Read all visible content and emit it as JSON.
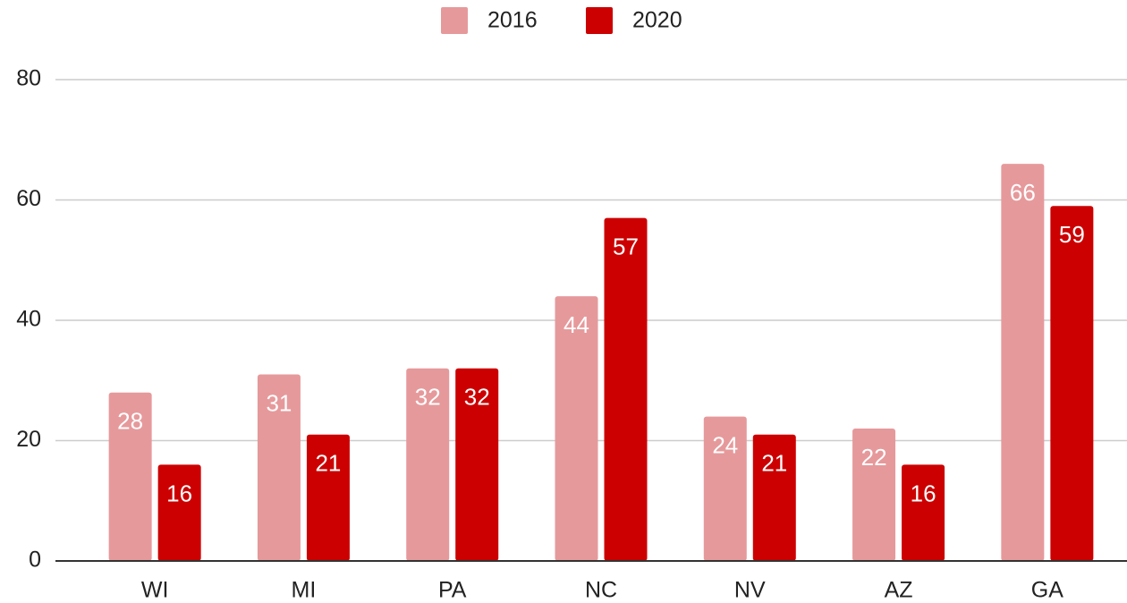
{
  "chart_data": {
    "type": "bar",
    "categories": [
      "WI",
      "MI",
      "PA",
      "NC",
      "NV",
      "AZ",
      "GA"
    ],
    "series": [
      {
        "name": "2016",
        "color": "#e6999b",
        "values": [
          28,
          31,
          32,
          44,
          24,
          22,
          66
        ]
      },
      {
        "name": "2020",
        "color": "#cc0000",
        "values": [
          16,
          21,
          32,
          57,
          21,
          16,
          59
        ]
      }
    ],
    "ylim": [
      0,
      80
    ],
    "yticks": [
      0,
      20,
      40,
      60,
      80
    ],
    "grid": true,
    "legend": "top"
  }
}
